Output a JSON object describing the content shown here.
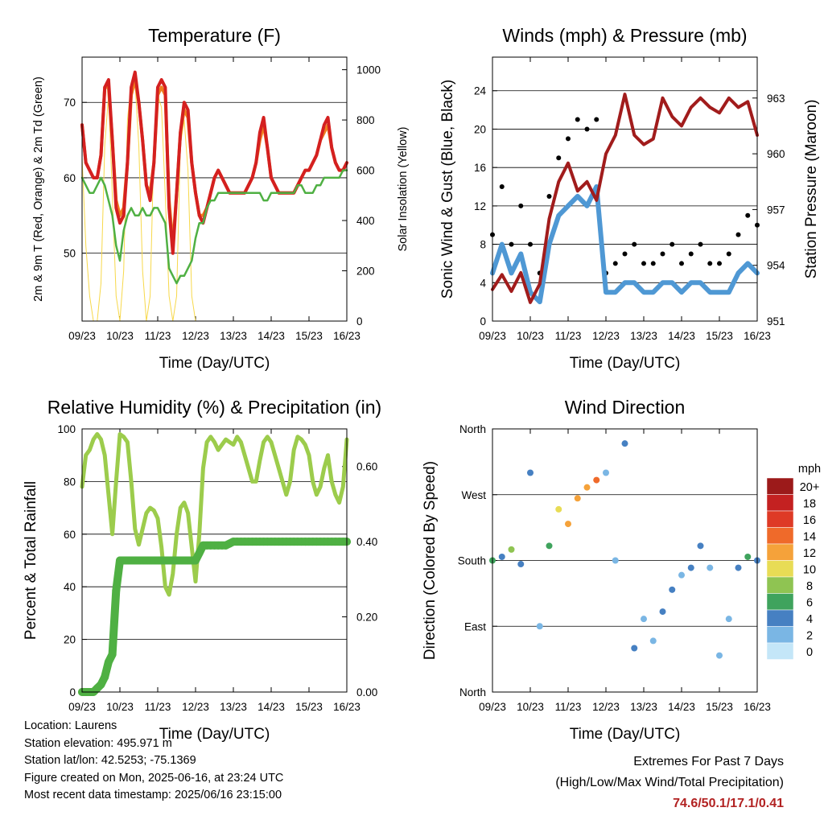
{
  "x_ticks": [
    "09/23",
    "10/23",
    "11/23",
    "12/23",
    "13/23",
    "14/23",
    "15/23",
    "16/23"
  ],
  "x_axis_label": "Time (Day/UTC)",
  "colors": {
    "red": "#d42020",
    "orange": "#f07f1f",
    "green": "#4fb043",
    "yellow": "#f7d84a",
    "black": "#000000",
    "blue": "#4f98d4",
    "maroon": "#a11c1c",
    "rh_green": "#9ccc4c",
    "precip_green": "#4fb043",
    "extreme_red": "#b22222"
  },
  "chart_data": [
    {
      "id": "temperature",
      "type": "line",
      "title": "Temperature (F)",
      "xlabel": "Time (Day/UTC)",
      "ylabel": "2m & 9m T (Red, Orange) & 2m Td (Green)",
      "ylabel_right": "Solar Insolation (Yellow)",
      "x": [
        0,
        0.1,
        0.2,
        0.3,
        0.4,
        0.5,
        0.6,
        0.7,
        0.8,
        0.9,
        1.0,
        1.1,
        1.2,
        1.3,
        1.4,
        1.5,
        1.6,
        1.7,
        1.8,
        1.9,
        2.0,
        2.1,
        2.2,
        2.3,
        2.4,
        2.5,
        2.6,
        2.7,
        2.8,
        2.9,
        3.0,
        3.1,
        3.2,
        3.3,
        3.4,
        3.5,
        3.6,
        3.7,
        3.8,
        3.9,
        4.0,
        4.1,
        4.2,
        4.3,
        4.4,
        4.5,
        4.6,
        4.7,
        4.8,
        4.9,
        5.0,
        5.1,
        5.2,
        5.3,
        5.4,
        5.5,
        5.6,
        5.7,
        5.8,
        5.9,
        6.0,
        6.1,
        6.2,
        6.3,
        6.4,
        6.5,
        6.6,
        6.7,
        6.8,
        6.9,
        7.0
      ],
      "ylim": [
        41,
        76
      ],
      "yticks": [
        50,
        60,
        70
      ],
      "y2lim": [
        0,
        1050
      ],
      "y2ticks": [
        0,
        200,
        400,
        600,
        800,
        1000
      ],
      "series": [
        {
          "axis": "left",
          "color": "red",
          "values": [
            67,
            62,
            61,
            60,
            60,
            63,
            72,
            73,
            65,
            56,
            54,
            55,
            62,
            72,
            74,
            70,
            65,
            59,
            57,
            62,
            72,
            73,
            72,
            56,
            50,
            58,
            66,
            70,
            69,
            62,
            58,
            55,
            54,
            56,
            58,
            60,
            61,
            60,
            59,
            58,
            58,
            58,
            58,
            58,
            59,
            60,
            62,
            66,
            68,
            64,
            60,
            59,
            58,
            58,
            58,
            58,
            58,
            59,
            60,
            61,
            61,
            62,
            63,
            65,
            67,
            68,
            64,
            62,
            61,
            61,
            62
          ]
        },
        {
          "axis": "left",
          "color": "orange",
          "values": [
            67,
            62,
            61,
            60,
            60,
            63,
            72,
            72,
            65,
            57,
            55,
            56,
            62,
            71,
            73,
            70,
            65,
            59,
            58,
            62,
            71,
            72,
            71,
            57,
            51,
            58,
            66,
            69,
            68,
            62,
            58,
            55,
            55,
            56,
            58,
            60,
            61,
            60,
            59,
            58,
            58,
            58,
            58,
            58,
            59,
            60,
            62,
            65,
            67,
            64,
            60,
            59,
            58,
            58,
            58,
            58,
            58,
            59,
            60,
            61,
            61,
            62,
            63,
            65,
            66,
            67,
            64,
            62,
            61,
            61,
            62
          ]
        },
        {
          "axis": "left",
          "color": "green",
          "values": [
            60,
            59,
            58,
            58,
            59,
            60,
            59,
            57,
            55,
            51,
            49,
            53,
            55,
            56,
            55,
            55,
            56,
            55,
            55,
            56,
            56,
            55,
            54,
            48,
            47,
            46,
            47,
            47,
            48,
            49,
            52,
            54,
            54,
            56,
            57,
            57,
            58,
            58,
            58,
            58,
            58,
            58,
            58,
            58,
            58,
            58,
            58,
            58,
            57,
            57,
            58,
            58,
            58,
            58,
            58,
            58,
            58,
            59,
            59,
            58,
            58,
            58,
            59,
            59,
            60,
            60,
            60,
            60,
            60,
            61,
            61
          ]
        },
        {
          "axis": "right",
          "color": "yellow",
          "values": [
            650,
            300,
            100,
            0,
            0,
            150,
            700,
            900,
            500,
            100,
            0,
            200,
            800,
            950,
            950,
            700,
            200,
            0,
            100,
            700,
            900,
            850,
            500,
            100,
            0,
            100,
            700,
            800,
            600,
            100,
            0,
            0,
            0,
            0,
            0,
            0,
            0,
            0,
            0,
            0,
            0,
            0,
            0,
            0,
            0,
            0,
            0,
            0,
            0,
            0,
            0,
            0,
            0,
            0,
            0,
            0,
            0,
            0,
            0,
            0,
            0,
            0,
            0,
            0,
            0,
            0,
            0,
            0,
            0,
            0,
            0
          ]
        }
      ]
    },
    {
      "id": "winds",
      "type": "scatter",
      "title": "Winds (mph) & Pressure (mb)",
      "xlabel": "Time (Day/UTC)",
      "ylabel": "Sonic Wind & Gust (Blue, Black)",
      "ylabel_right": "Station Pressure (Maroon)",
      "ylim": [
        0,
        27.5
      ],
      "yticks": [
        0,
        4,
        8,
        12,
        16,
        20,
        24
      ],
      "y2lim": [
        951,
        965.2
      ],
      "y2ticks": [
        951,
        954,
        957,
        960,
        963
      ],
      "x": [
        0,
        0.25,
        0.5,
        0.75,
        1.0,
        1.25,
        1.5,
        1.75,
        2.0,
        2.25,
        2.5,
        2.75,
        3.0,
        3.25,
        3.5,
        3.75,
        4.0,
        4.25,
        4.5,
        4.75,
        5.0,
        5.25,
        5.5,
        5.75,
        6.0,
        6.25,
        6.5,
        6.75,
        7.0
      ],
      "series": [
        {
          "axis": "left",
          "color": "black",
          "name": "Gust",
          "values": [
            9,
            14,
            8,
            12,
            8,
            5,
            13,
            17,
            19,
            21,
            20,
            21,
            5,
            6,
            7,
            8,
            6,
            6,
            7,
            8,
            6,
            7,
            8,
            6,
            6,
            7,
            9,
            11,
            10
          ]
        },
        {
          "axis": "left",
          "color": "blue",
          "name": "Sonic Wind",
          "values": [
            5,
            8,
            5,
            7,
            3,
            2,
            8,
            11,
            12,
            13,
            12,
            14,
            3,
            3,
            4,
            4,
            3,
            3,
            4,
            4,
            3,
            4,
            4,
            3,
            3,
            3,
            5,
            6,
            5
          ]
        },
        {
          "axis": "right",
          "color": "maroon",
          "name": "Pressure",
          "values": [
            952.7,
            953.5,
            952.6,
            953.6,
            952,
            953,
            956.5,
            958.5,
            959.5,
            958,
            958.5,
            957.5,
            960,
            961,
            963.2,
            961,
            960.5,
            960.8,
            963,
            962,
            961.5,
            962.5,
            963,
            962.5,
            962.2,
            963,
            962.5,
            962.8,
            961
          ]
        }
      ]
    },
    {
      "id": "rh_precip",
      "type": "line",
      "title": "Relative Humidity (%) & Precipitation (in)",
      "xlabel": "Time (Day/UTC)",
      "ylabel": "Percent & Total Rainfall",
      "ylim": [
        0,
        100
      ],
      "yticks": [
        0,
        20,
        40,
        60,
        80,
        100
      ],
      "y2lim": [
        0,
        0.7
      ],
      "y2ticks": [
        "0.00",
        "0.20",
        "0.40",
        "0.60"
      ],
      "x": [
        0,
        0.1,
        0.2,
        0.3,
        0.4,
        0.5,
        0.6,
        0.7,
        0.8,
        0.9,
        1.0,
        1.1,
        1.2,
        1.3,
        1.4,
        1.5,
        1.6,
        1.7,
        1.8,
        1.9,
        2.0,
        2.1,
        2.2,
        2.3,
        2.4,
        2.5,
        2.6,
        2.7,
        2.8,
        2.9,
        3.0,
        3.1,
        3.2,
        3.3,
        3.4,
        3.5,
        3.6,
        3.7,
        3.8,
        3.9,
        4.0,
        4.1,
        4.2,
        4.3,
        4.4,
        4.5,
        4.6,
        4.7,
        4.8,
        4.9,
        5.0,
        5.1,
        5.2,
        5.3,
        5.4,
        5.5,
        5.6,
        5.7,
        5.8,
        5.9,
        6.0,
        6.1,
        6.2,
        6.3,
        6.4,
        6.5,
        6.6,
        6.7,
        6.8,
        6.9,
        7.0
      ],
      "series": [
        {
          "axis": "left",
          "color": "rh_green",
          "name": "RH",
          "values": [
            78,
            90,
            92,
            96,
            98,
            96,
            90,
            75,
            60,
            80,
            98,
            97,
            95,
            80,
            62,
            56,
            62,
            68,
            70,
            69,
            66,
            55,
            40,
            37,
            45,
            60,
            70,
            72,
            68,
            55,
            42,
            60,
            85,
            95,
            97,
            95,
            92,
            94,
            96,
            95,
            94,
            97,
            95,
            90,
            85,
            80,
            80,
            88,
            95,
            97,
            95,
            90,
            85,
            80,
            75,
            80,
            92,
            97,
            96,
            94,
            90,
            80,
            75,
            78,
            85,
            90,
            80,
            75,
            72,
            78,
            96
          ]
        },
        {
          "axis": "right",
          "color": "precip_green",
          "name": "Precipitation",
          "values": [
            0,
            0,
            0,
            0,
            0.01,
            0.02,
            0.04,
            0.08,
            0.1,
            0.27,
            0.35,
            0.35,
            0.35,
            0.35,
            0.35,
            0.35,
            0.35,
            0.35,
            0.35,
            0.35,
            0.35,
            0.35,
            0.35,
            0.35,
            0.35,
            0.35,
            0.35,
            0.35,
            0.35,
            0.35,
            0.35,
            0.37,
            0.39,
            0.39,
            0.39,
            0.39,
            0.39,
            0.39,
            0.39,
            0.395,
            0.4,
            0.4,
            0.4,
            0.4,
            0.4,
            0.4,
            0.4,
            0.4,
            0.4,
            0.4,
            0.4,
            0.4,
            0.4,
            0.4,
            0.4,
            0.4,
            0.4,
            0.4,
            0.4,
            0.4,
            0.4,
            0.4,
            0.4,
            0.4,
            0.4,
            0.4,
            0.4,
            0.4,
            0.4,
            0.4,
            0.4
          ]
        }
      ]
    },
    {
      "id": "wind_direction",
      "type": "scatter",
      "title": "Wind Direction",
      "xlabel": "Time (Day/UTC)",
      "ylabel": "Direction (Colored By Speed)",
      "ylim": [
        0,
        360
      ],
      "yticks": [
        "North",
        "East",
        "South",
        "West",
        "North"
      ],
      "x": [
        0,
        0.25,
        0.5,
        0.75,
        1.0,
        1.25,
        1.5,
        1.75,
        2.0,
        2.25,
        2.5,
        2.75,
        3.0,
        3.25,
        3.5,
        3.75,
        4.0,
        4.25,
        4.5,
        4.75,
        5.0,
        5.25,
        5.5,
        5.75,
        6.0,
        6.25,
        6.5,
        6.75,
        7.0
      ],
      "series": [
        {
          "name": "Direction",
          "values": [
            180,
            185,
            195,
            175,
            300,
            90,
            200,
            250,
            230,
            265,
            280,
            290,
            300,
            180,
            340,
            60,
            100,
            70,
            110,
            140,
            160,
            170,
            200,
            170,
            50,
            100,
            170,
            185,
            180
          ]
        },
        {
          "name": "Speed",
          "values": [
            6,
            5,
            8,
            5,
            4,
            2,
            7,
            11,
            12,
            13,
            12,
            14,
            2,
            3,
            4,
            4,
            3,
            3,
            4,
            4,
            3,
            4,
            4,
            3,
            3,
            3,
            5,
            6,
            5
          ]
        }
      ],
      "colorbar": {
        "title": "mph",
        "labels": [
          "20+",
          "18",
          "16",
          "14",
          "12",
          "10",
          "8",
          "6",
          "4",
          "2",
          "0"
        ],
        "colors": [
          "#9c1a1a",
          "#c42121",
          "#de3a26",
          "#ef6a2a",
          "#f5a23a",
          "#e8dc55",
          "#8fc452",
          "#3fa35d",
          "#4680c2",
          "#7ab6e4",
          "#c4e6f8"
        ]
      }
    }
  ],
  "info": {
    "location": "Location: Laurens",
    "elevation": "Station elevation: 495.971 m",
    "latlon": "Station lat/lon: 42.5253; -75.1369",
    "created": "Figure created on Mon, 2025-06-16, at 23:24 UTC",
    "recent": "Most recent data timestamp: 2025/06/16 23:15:00"
  },
  "extremes": {
    "title": "Extremes For Past 7 Days",
    "subtitle": "(High/Low/Max Wind/Total Precipitation)",
    "values": "74.6/50.1/17.1/0.41"
  }
}
